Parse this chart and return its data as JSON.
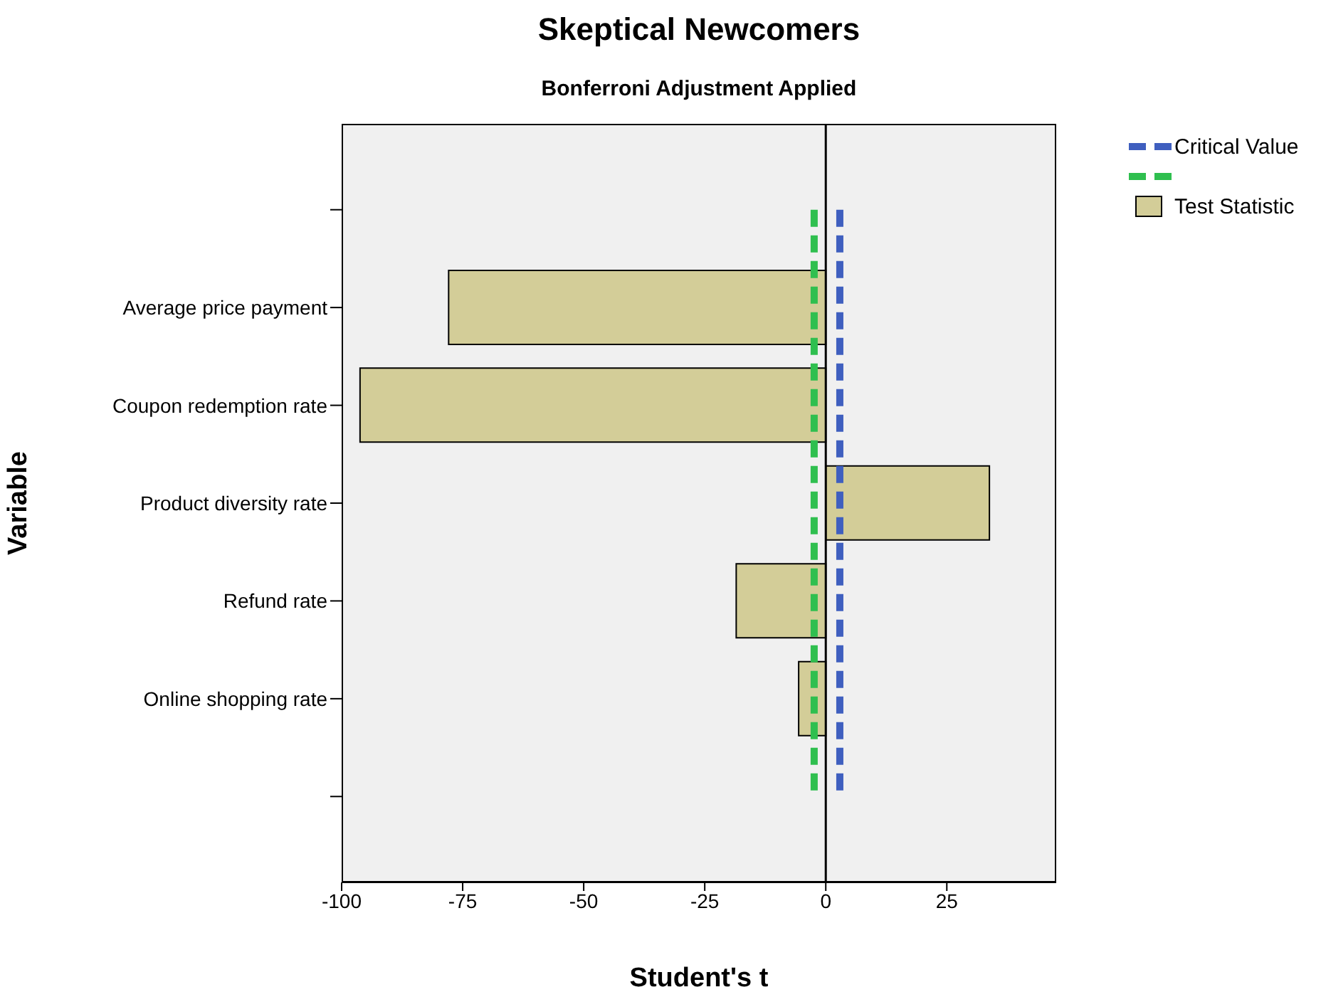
{
  "chart_data": {
    "type": "bar",
    "orientation": "horizontal",
    "title": "Skeptical Newcomers",
    "subtitle": "Bonferroni Adjustment Applied",
    "xlabel": "Student's t",
    "ylabel": "Variable",
    "categories": [
      null,
      "Average price payment",
      "Coupon redemption rate",
      "Product diversity rate",
      "Refund rate",
      "Online shopping rate",
      null
    ],
    "series": [
      {
        "name": "Critical Value",
        "type": "line",
        "line_style": "dashed",
        "color": "#3f5fbf",
        "values": [
          2.9,
          2.9,
          2.9,
          2.9,
          2.9,
          2.9,
          2.9
        ]
      },
      {
        "type": "line",
        "line_style": "dashed",
        "color": "#2fbf4f",
        "values": [
          -2.4,
          -2.4,
          -2.4,
          -2.4,
          -2.4,
          -2.4,
          -2.4
        ]
      },
      {
        "name": "Test Statistic",
        "color": "#d3cd98",
        "values": [
          null,
          -77.9,
          -96.2,
          33.8,
          -18.5,
          -5.6,
          null
        ]
      }
    ],
    "xlim": [
      -100,
      47.6
    ],
    "xticks": [
      -100,
      -75,
      -50,
      -25,
      0,
      25
    ],
    "ref_lines": [
      {
        "axis": "x",
        "value": 0,
        "color": "#000000",
        "line_style": "solid"
      }
    ],
    "legend": "top right"
  }
}
